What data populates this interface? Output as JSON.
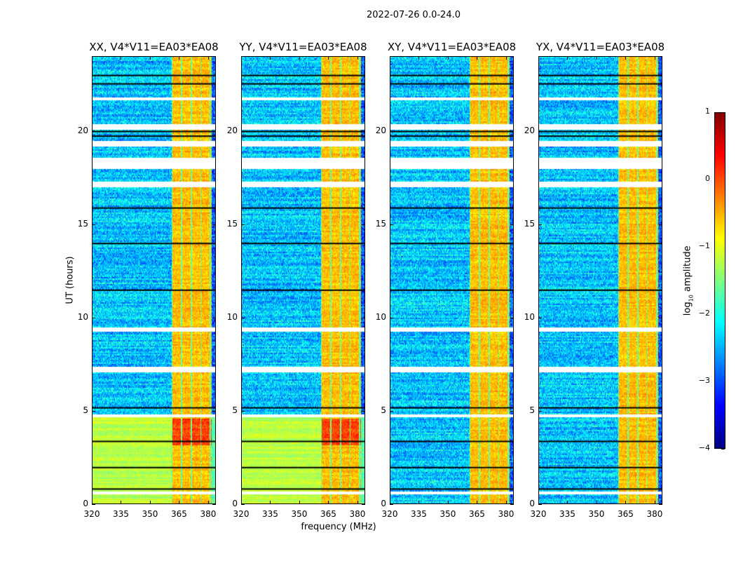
{
  "chart_data": {
    "type": "heatmap",
    "title": "2022-07-26 0.0-24.0",
    "xlabel": "frequency (MHz)",
    "ylabel": "UT (hours)",
    "xlim": [
      320,
      384
    ],
    "ylim": [
      0,
      24
    ],
    "xticks": [
      "320",
      "335",
      "350",
      "365",
      "380"
    ],
    "xtick_values": [
      320,
      335,
      350,
      365,
      380
    ],
    "yticks": [
      "0",
      "5",
      "10",
      "15",
      "20"
    ],
    "ytick_values": [
      0,
      5,
      10,
      15,
      20
    ],
    "panels": [
      {
        "title": "XX, V4*V11=EA03*EA08",
        "low_time_elevated": true
      },
      {
        "title": "YY, V4*V11=EA03*EA08",
        "low_time_elevated": true
      },
      {
        "title": "XY, V4*V11=EA03*EA08",
        "low_time_elevated": false
      },
      {
        "title": "YX, V4*V11=EA03*EA08",
        "low_time_elevated": false
      }
    ],
    "bright_band_mhz": [
      361,
      382
    ],
    "flagged_hours": [
      [
        21.7,
        21.85
      ],
      [
        20.15,
        20.45
      ],
      [
        19.2,
        19.5
      ],
      [
        18.0,
        18.6
      ],
      [
        17.0,
        17.3
      ],
      [
        9.3,
        9.5
      ],
      [
        7.1,
        7.4
      ],
      [
        4.65,
        4.85
      ],
      [
        0.55,
        0.7
      ]
    ],
    "black_line_hours": [
      23.0,
      22.55,
      20.0,
      19.75,
      15.9,
      14.0,
      11.5,
      5.2,
      3.4,
      2.0,
      0.85
    ],
    "colorbar": {
      "label_main": "log",
      "label_sub": "10",
      "label_rest": " amplitude",
      "range": [
        -4,
        1
      ],
      "ticks": [
        "1",
        "0",
        "−1",
        "−2",
        "−3",
        "−4"
      ],
      "tick_values": [
        1,
        0,
        -1,
        -2,
        -3,
        -4
      ],
      "colormap": "jet"
    }
  }
}
